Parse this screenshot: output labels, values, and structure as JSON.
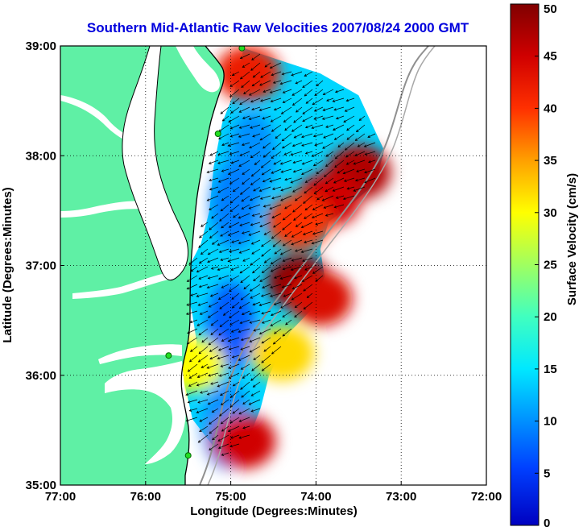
{
  "chart_data": {
    "type": "heatmap",
    "title": "Southern Mid-Atlantic Raw Velocities 2007/08/24 2000 GMT",
    "xlabel": "Longitude (Degrees:Minutes)",
    "ylabel": "Latitude (Degrees:Minutes)",
    "xlim": [
      -77,
      -72
    ],
    "ylim": [
      35,
      39
    ],
    "grid": true,
    "xticks": [
      {
        "value": -77,
        "label": "77:00"
      },
      {
        "value": -76,
        "label": "76:00"
      },
      {
        "value": -75,
        "label": "75:00"
      },
      {
        "value": -74,
        "label": "74:00"
      },
      {
        "value": -73,
        "label": "73:00"
      },
      {
        "value": -72,
        "label": "72:00"
      }
    ],
    "yticks": [
      {
        "value": 35,
        "label": "35:00"
      },
      {
        "value": 36,
        "label": "36:00"
      },
      {
        "value": 37,
        "label": "37:00"
      },
      {
        "value": 38,
        "label": "38:00"
      },
      {
        "value": 39,
        "label": "39:00"
      }
    ],
    "colorbar": {
      "label": "Surface Velocity (cm/s)",
      "min": 0,
      "max": 50,
      "ticks": [
        {
          "value": 0,
          "label": "0"
        },
        {
          "value": 5,
          "label": "5"
        },
        {
          "value": 10,
          "label": "10"
        },
        {
          "value": 15,
          "label": "15"
        },
        {
          "value": 20,
          "label": "20"
        },
        {
          "value": 25,
          "label": "25"
        },
        {
          "value": 30,
          "label": "30"
        },
        {
          "value": 35,
          "label": "35"
        },
        {
          "value": 40,
          "label": "40"
        },
        {
          "value": 45,
          "label": "45"
        },
        {
          "value": 50,
          "label": "50"
        }
      ]
    },
    "velocity_hotspots": [
      {
        "lon": -73.5,
        "lat": 37.85,
        "speed": 47
      },
      {
        "lon": -73.85,
        "lat": 37.6,
        "speed": 45
      },
      {
        "lon": -74.2,
        "lat": 37.4,
        "speed": 40
      },
      {
        "lon": -74.2,
        "lat": 36.85,
        "speed": 49
      },
      {
        "lon": -73.95,
        "lat": 36.7,
        "speed": 44
      },
      {
        "lon": -74.8,
        "lat": 38.75,
        "speed": 42
      },
      {
        "lon": -74.85,
        "lat": 35.4,
        "speed": 45
      },
      {
        "lon": -74.4,
        "lat": 36.2,
        "speed": 32
      },
      {
        "lon": -75.45,
        "lat": 36.1,
        "speed": 30
      }
    ],
    "velocity_lows": [
      {
        "lon": -74.75,
        "lat": 38.0,
        "speed": 10
      },
      {
        "lon": -74.95,
        "lat": 37.55,
        "speed": 9
      },
      {
        "lon": -75.0,
        "lat": 36.45,
        "speed": 7
      },
      {
        "lon": -75.05,
        "lat": 35.55,
        "speed": 10
      }
    ],
    "radar_sites": [
      {
        "lon": -74.87,
        "lat": 38.98
      },
      {
        "lon": -75.15,
        "lat": 38.2
      },
      {
        "lon": -75.73,
        "lat": 36.18
      },
      {
        "lon": -75.5,
        "lat": 35.27
      }
    ],
    "mean_current_direction": "southwest to south"
  },
  "colors": {
    "title": "#0000dd",
    "land": "#5ff0a5",
    "bathymetry": "#909090",
    "grid": "#000000",
    "site": "#22dd22",
    "vector": "#000000"
  }
}
